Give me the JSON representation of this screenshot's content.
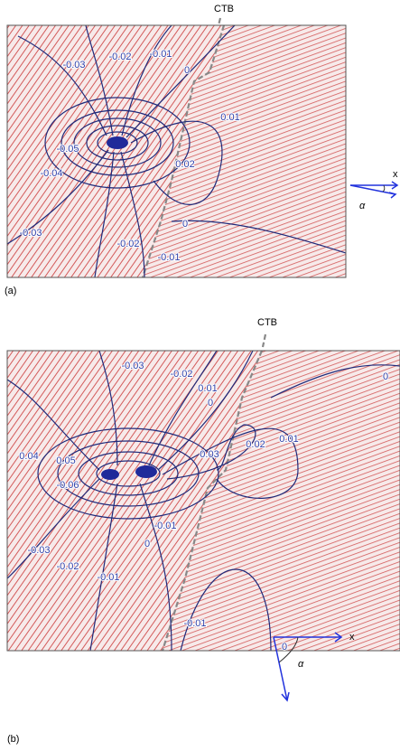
{
  "panels": [
    {
      "label": "(a)",
      "boundary": "CTB",
      "contour_labels": [
        "-0.03",
        "-0.02",
        "-0.01",
        "0",
        "0.01",
        "-0.05",
        "-0.04",
        "0.02",
        "-0.03",
        "-0.02",
        "0",
        "-0.01"
      ],
      "axis": {
        "x": "x",
        "angle": "α"
      }
    },
    {
      "label": "(b)",
      "boundary": "CTB",
      "contour_labels": [
        "-0.03",
        "-0.02",
        "0.01",
        "0",
        "0",
        "0.02",
        "0.01",
        "0.04",
        "0.05",
        "0.03",
        "-0.06",
        "-0.01",
        "0",
        "-0.03",
        "-0.02",
        "-0.01",
        "-0.01",
        "0"
      ],
      "axis": {
        "x": "x",
        "angle": "α"
      }
    }
  ]
}
